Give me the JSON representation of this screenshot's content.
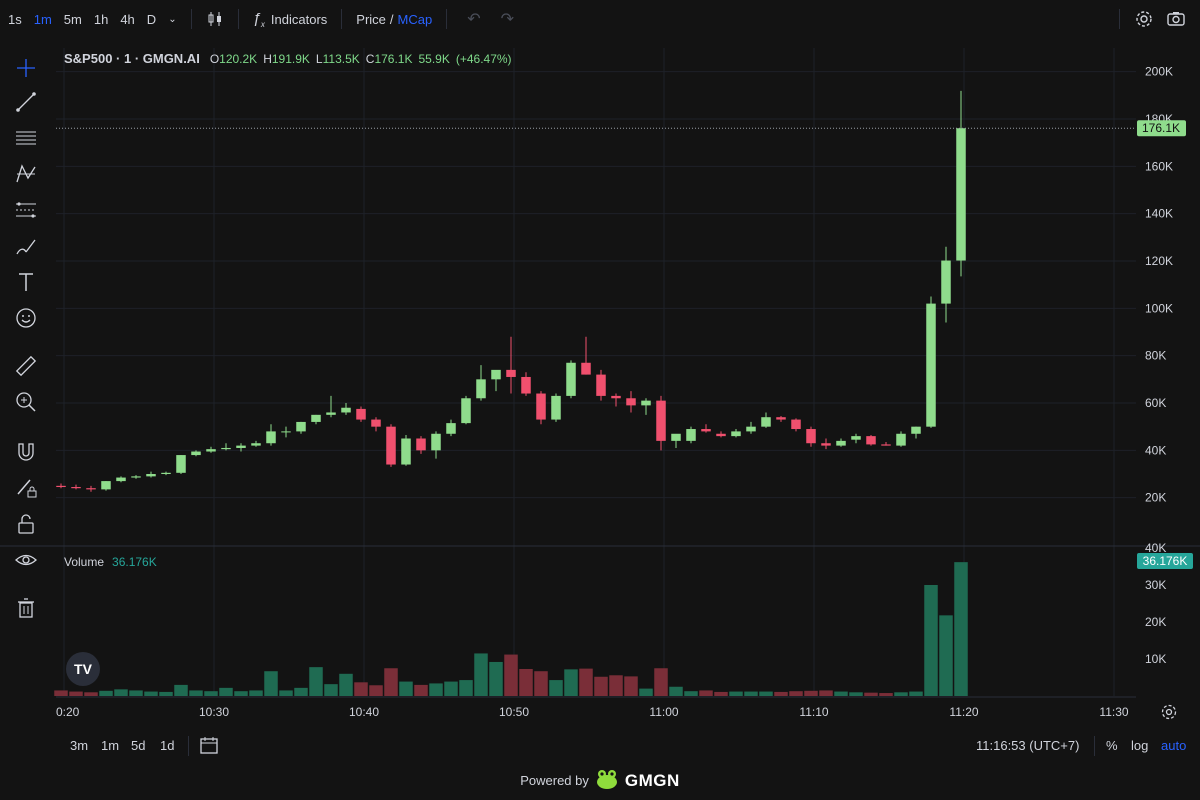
{
  "toolbar": {
    "timeframes": [
      "1s",
      "1m",
      "5m",
      "1h",
      "4h",
      "D"
    ],
    "active_timeframe": "1m",
    "indicators_label": "Indicators",
    "price_label": "Price",
    "slash": "/",
    "mcap_label": "MCap"
  },
  "legend": {
    "symbol": "S&P500 · 1 · GMGN.AI",
    "open_key": "O",
    "open": "120.2K",
    "high_key": "H",
    "high": "191.9K",
    "low_key": "L",
    "low": "113.5K",
    "close_key": "C",
    "close": "176.1K",
    "change": "55.9K",
    "change_pct": "(+46.47%)"
  },
  "volume_legend": {
    "label": "Volume",
    "value": "36.176K"
  },
  "price_tag": "176.1K",
  "volume_tag": "36.176K",
  "bottom": {
    "ranges": [
      "3m",
      "1m",
      "5d",
      "1d"
    ],
    "time": "11:16:53 (UTC+7)",
    "percent": "%",
    "log": "log",
    "auto": "auto"
  },
  "powered": {
    "text": "Powered by",
    "brand": "GMGN"
  },
  "colors": {
    "up": "#8fdc8c",
    "down": "#f0506e",
    "vol_up": "#1f6b52",
    "vol_down": "#7a2e38",
    "accent": "#2962ff",
    "tag_green": "#26a69a"
  },
  "tools": [
    "crosshair-icon",
    "trendline-icon",
    "horizontal-lines-icon",
    "pattern-icon",
    "fib-icon",
    "brush-icon",
    "text-icon",
    "emoji-icon",
    "ruler-icon",
    "zoom-icon",
    "magnet-icon",
    "lock-draw-icon",
    "lock-icon",
    "eye-icon",
    "trash-icon"
  ],
  "chart_data": {
    "type": "candlestick",
    "x_ticks": [
      "0:20",
      "10:30",
      "10:40",
      "10:50",
      "11:00",
      "11:10",
      "11:20",
      "11:30"
    ],
    "y_ticks": [
      "20K",
      "40K",
      "60K",
      "80K",
      "100K",
      "120K",
      "140K",
      "160K",
      "180K",
      "200K"
    ],
    "y_range": [
      0,
      210000
    ],
    "volume_ticks": [
      "10K",
      "20K",
      "30K",
      "40K"
    ],
    "volume_range": [
      0,
      40000
    ],
    "candles": [
      {
        "o": 25000,
        "h": 26000,
        "l": 24000,
        "c": 24500,
        "v": 1500
      },
      {
        "o": 24500,
        "h": 25500,
        "l": 23500,
        "c": 24000,
        "v": 1200
      },
      {
        "o": 24000,
        "h": 25000,
        "l": 22500,
        "c": 23500,
        "v": 1000
      },
      {
        "o": 23500,
        "h": 27000,
        "l": 23000,
        "c": 27000,
        "v": 1400
      },
      {
        "o": 27000,
        "h": 29000,
        "l": 26500,
        "c": 28500,
        "v": 1800
      },
      {
        "o": 28500,
        "h": 29500,
        "l": 28000,
        "c": 29000,
        "v": 1500
      },
      {
        "o": 29000,
        "h": 31000,
        "l": 28500,
        "c": 30000,
        "v": 1200
      },
      {
        "o": 30000,
        "h": 31000,
        "l": 29500,
        "c": 30500,
        "v": 1100
      },
      {
        "o": 30500,
        "h": 38000,
        "l": 30000,
        "c": 38000,
        "v": 3000
      },
      {
        "o": 38000,
        "h": 40000,
        "l": 37500,
        "c": 39500,
        "v": 1500
      },
      {
        "o": 39500,
        "h": 41500,
        "l": 39000,
        "c": 40500,
        "v": 1300
      },
      {
        "o": 40500,
        "h": 43000,
        "l": 40000,
        "c": 41000,
        "v": 2200
      },
      {
        "o": 41000,
        "h": 43000,
        "l": 39500,
        "c": 42000,
        "v": 1300
      },
      {
        "o": 42000,
        "h": 44000,
        "l": 41500,
        "c": 43000,
        "v": 1500
      },
      {
        "o": 43000,
        "h": 51000,
        "l": 42000,
        "c": 48000,
        "v": 6700
      },
      {
        "o": 48000,
        "h": 50000,
        "l": 45500,
        "c": 48000,
        "v": 1500
      },
      {
        "o": 48000,
        "h": 52000,
        "l": 47000,
        "c": 52000,
        "v": 2200
      },
      {
        "o": 52000,
        "h": 55000,
        "l": 51000,
        "c": 55000,
        "v": 7800
      },
      {
        "o": 55000,
        "h": 63000,
        "l": 54000,
        "c": 56000,
        "v": 3200
      },
      {
        "o": 56000,
        "h": 60000,
        "l": 55000,
        "c": 58000,
        "v": 6000
      },
      {
        "o": 57500,
        "h": 58500,
        "l": 52000,
        "c": 53000,
        "v": 3700
      },
      {
        "o": 53000,
        "h": 54000,
        "l": 48000,
        "c": 50000,
        "v": 2900
      },
      {
        "o": 50000,
        "h": 51000,
        "l": 33000,
        "c": 34000,
        "v": 7500
      },
      {
        "o": 34000,
        "h": 46500,
        "l": 33500,
        "c": 45000,
        "v": 3900
      },
      {
        "o": 45000,
        "h": 46000,
        "l": 38500,
        "c": 40000,
        "v": 3000
      },
      {
        "o": 40000,
        "h": 48000,
        "l": 36500,
        "c": 47000,
        "v": 3400
      },
      {
        "o": 47000,
        "h": 53000,
        "l": 46000,
        "c": 51500,
        "v": 3900
      },
      {
        "o": 51500,
        "h": 63000,
        "l": 51000,
        "c": 62000,
        "v": 4300
      },
      {
        "o": 62000,
        "h": 76000,
        "l": 61000,
        "c": 70000,
        "v": 11500
      },
      {
        "o": 70000,
        "h": 73000,
        "l": 65000,
        "c": 74000,
        "v": 9200
      },
      {
        "o": 74000,
        "h": 88000,
        "l": 64000,
        "c": 71000,
        "v": 11200
      },
      {
        "o": 71000,
        "h": 73000,
        "l": 63000,
        "c": 64000,
        "v": 7300
      },
      {
        "o": 64000,
        "h": 65000,
        "l": 51000,
        "c": 53000,
        "v": 6700
      },
      {
        "o": 53000,
        "h": 64000,
        "l": 52000,
        "c": 63000,
        "v": 4300
      },
      {
        "o": 63000,
        "h": 78000,
        "l": 62000,
        "c": 77000,
        "v": 7200
      },
      {
        "o": 77000,
        "h": 88000,
        "l": 72000,
        "c": 72000,
        "v": 7400
      },
      {
        "o": 72000,
        "h": 74000,
        "l": 61000,
        "c": 63000,
        "v": 5200
      },
      {
        "o": 63000,
        "h": 64000,
        "l": 58500,
        "c": 62000,
        "v": 5600
      },
      {
        "o": 62000,
        "h": 65000,
        "l": 56000,
        "c": 59000,
        "v": 5300
      },
      {
        "o": 59000,
        "h": 62000,
        "l": 55000,
        "c": 61000,
        "v": 2000
      },
      {
        "o": 61000,
        "h": 63000,
        "l": 40000,
        "c": 44000,
        "v": 7500
      },
      {
        "o": 44000,
        "h": 46000,
        "l": 41000,
        "c": 47000,
        "v": 2500
      },
      {
        "o": 44000,
        "h": 50000,
        "l": 43000,
        "c": 49000,
        "v": 1300
      },
      {
        "o": 49000,
        "h": 51000,
        "l": 47500,
        "c": 48000,
        "v": 1500
      },
      {
        "o": 47000,
        "h": 48000,
        "l": 45500,
        "c": 46000,
        "v": 1100
      },
      {
        "o": 46000,
        "h": 49000,
        "l": 45500,
        "c": 48000,
        "v": 1200
      },
      {
        "o": 48000,
        "h": 52000,
        "l": 47000,
        "c": 50000,
        "v": 1200
      },
      {
        "o": 50000,
        "h": 56000,
        "l": 49500,
        "c": 54000,
        "v": 1200
      },
      {
        "o": 54000,
        "h": 54500,
        "l": 52000,
        "c": 53000,
        "v": 1100
      },
      {
        "o": 53000,
        "h": 53500,
        "l": 48000,
        "c": 49000,
        "v": 1300
      },
      {
        "o": 49000,
        "h": 50000,
        "l": 41500,
        "c": 43000,
        "v": 1400
      },
      {
        "o": 43000,
        "h": 45000,
        "l": 40500,
        "c": 42000,
        "v": 1500
      },
      {
        "o": 42000,
        "h": 45000,
        "l": 41500,
        "c": 44000,
        "v": 1200
      },
      {
        "o": 44500,
        "h": 47000,
        "l": 43000,
        "c": 46000,
        "v": 1000
      },
      {
        "o": 46000,
        "h": 46500,
        "l": 42000,
        "c": 42500,
        "v": 900
      },
      {
        "o": 42500,
        "h": 43500,
        "l": 42000,
        "c": 42000,
        "v": 800
      },
      {
        "o": 42000,
        "h": 48000,
        "l": 41500,
        "c": 47000,
        "v": 1000
      },
      {
        "o": 47000,
        "h": 50000,
        "l": 45000,
        "c": 50000,
        "v": 1200
      },
      {
        "o": 50000,
        "h": 105000,
        "l": 49500,
        "c": 102000,
        "v": 30000
      },
      {
        "o": 102000,
        "h": 126000,
        "l": 94000,
        "c": 120200,
        "v": 21800
      },
      {
        "o": 120200,
        "h": 191900,
        "l": 113500,
        "c": 176100,
        "v": 36176
      }
    ]
  }
}
